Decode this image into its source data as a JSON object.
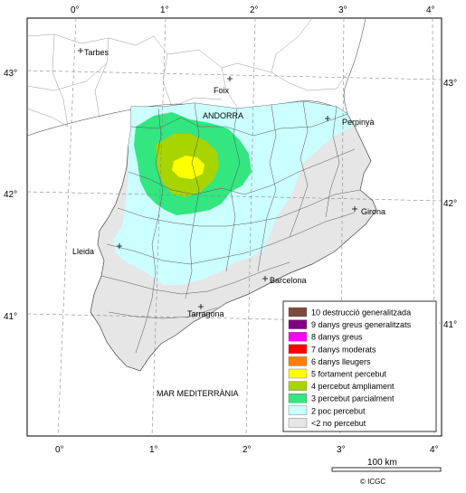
{
  "lon_ticks_top": [
    "0°",
    "1°",
    "2°",
    "3°",
    "4°"
  ],
  "lon_ticks_bottom": [
    "0°",
    "1°",
    "2°",
    "3°",
    "4°"
  ],
  "lat_ticks_left": [
    "43°",
    "42°",
    "41°"
  ],
  "lat_ticks_right": [
    "43°",
    "42°",
    "41°"
  ],
  "places": {
    "tarbes": "Tarbes",
    "foix": "Foix",
    "andorra": "ANDORRA",
    "perpinya": "Perpinyà",
    "girona": "Girona",
    "lleida": "Lleida",
    "barcelona": "Barcelona",
    "tarragona": "Tarragona",
    "sea": "MAR MEDITERRÀNIA"
  },
  "legend": [
    {
      "label": "10 destrucció generalitzada",
      "color": "#7b4a3d"
    },
    {
      "label": "9 danys greus generalitzats",
      "color": "#800080"
    },
    {
      "label": "8 danys greus",
      "color": "#ff00ff"
    },
    {
      "label": "7 danys moderats",
      "color": "#ff0000"
    },
    {
      "label": "6 danys lleugers",
      "color": "#ff8000"
    },
    {
      "label": "5 fortament percebut",
      "color": "#ffff00"
    },
    {
      "label": "4 percebut àmpliament",
      "color": "#a8d400"
    },
    {
      "label": "3 percebut parcialment",
      "color": "#33e680"
    },
    {
      "label": "2 poc percebut",
      "color": "#ccffff"
    },
    {
      "label": "<2 no percebut",
      "color": "#e6e6e6"
    }
  ],
  "scale_label": "100 km",
  "credit": "© ICGC"
}
